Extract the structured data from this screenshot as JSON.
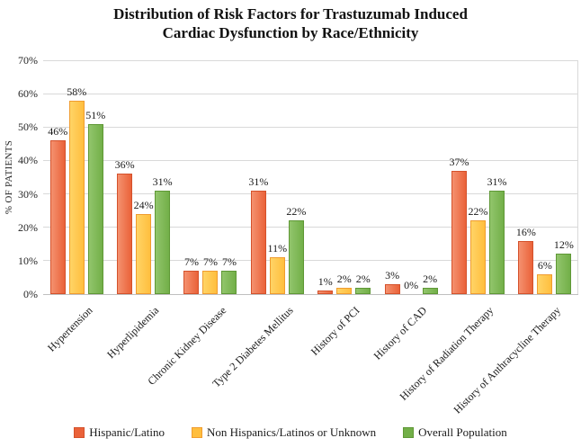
{
  "title": {
    "line1": "Distribution of Risk Factors for Trastuzumab Induced",
    "line2": "Cardiac Dysfunction by Race/Ethnicity"
  },
  "chart_data": {
    "type": "bar",
    "categories": [
      "Hypertension",
      "Hyperlipidemia",
      "Chronic Kidney Disease",
      "Type 2 Diabetes Mellitus",
      "History of PCI",
      "History of CAD",
      "History of Radiation Therapy",
      "History of Anthracycline Therapy"
    ],
    "series": [
      {
        "name": "Hispanic/Latino",
        "slug": "hispanic-latino",
        "values": [
          46,
          36,
          7,
          31,
          1,
          3,
          37,
          16
        ],
        "fill": "#EA6239",
        "fill_light": "#F4916F",
        "border": "#D4512B"
      },
      {
        "name": "Non Hispanics/Latinos or Unknown",
        "slug": "non-hispanics-latinos-or-unknown",
        "values": [
          58,
          24,
          7,
          11,
          2,
          0,
          22,
          6
        ],
        "fill": "#FFBE3E",
        "fill_light": "#FFD466",
        "border": "#F09C2F"
      },
      {
        "name": "Overall Population",
        "slug": "overall-population",
        "values": [
          51,
          31,
          7,
          22,
          2,
          2,
          31,
          12
        ],
        "fill": "#72AF48",
        "fill_light": "#92C56C",
        "border": "#5F9836"
      }
    ],
    "ylabel": "% OF PATIENTS",
    "xlabel": "",
    "ylim": [
      0,
      70
    ],
    "ytick_step": 10,
    "ytick_suffix": "%",
    "value_label_suffix": "%",
    "grid": true,
    "legend_position": "bottom",
    "gridline_color": "#d9d9d9",
    "axis_line_color": "#bfbfbf"
  }
}
